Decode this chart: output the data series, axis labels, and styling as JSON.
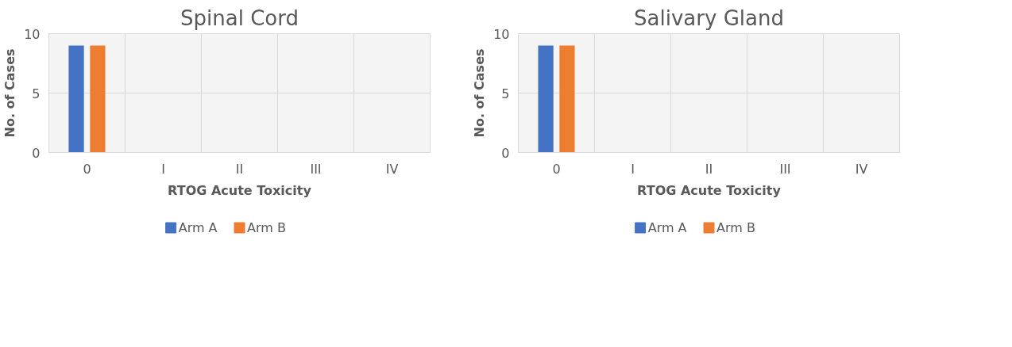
{
  "chart_data": [
    {
      "type": "bar",
      "title": "Spinal Cord",
      "xlabel": "RTOG Acute Toxicity",
      "ylabel": "No. of Cases",
      "categories": [
        "0",
        "I",
        "II",
        "III",
        "IV"
      ],
      "ylim": [
        0,
        10
      ],
      "yticks": [
        0,
        5,
        10
      ],
      "grid": true,
      "legend": "bottom",
      "series": [
        {
          "name": "Arm A",
          "color": "#4472c4",
          "values": [
            9,
            0,
            0,
            0,
            0
          ]
        },
        {
          "name": "Arm B",
          "color": "#ed7d31",
          "values": [
            9,
            0,
            0,
            0,
            0
          ]
        }
      ]
    },
    {
      "type": "bar",
      "title": "Salivary Gland",
      "xlabel": "RTOG Acute Toxicity",
      "ylabel": "No. of Cases",
      "categories": [
        "0",
        "I",
        "II",
        "III",
        "IV"
      ],
      "ylim": [
        0,
        10
      ],
      "yticks": [
        0,
        5,
        10
      ],
      "grid": true,
      "legend": "bottom",
      "series": [
        {
          "name": "Arm A",
          "color": "#4472c4",
          "values": [
            9,
            0,
            0,
            0,
            0
          ]
        },
        {
          "name": "Arm B",
          "color": "#ed7d31",
          "values": [
            9,
            0,
            0,
            0,
            0
          ]
        }
      ]
    }
  ]
}
